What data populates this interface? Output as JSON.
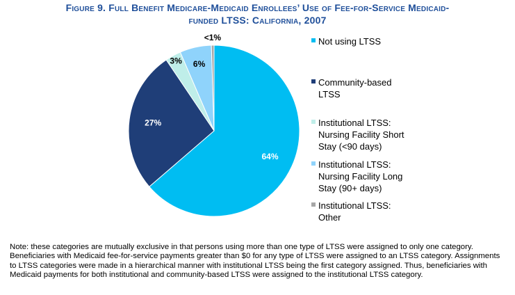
{
  "title": {
    "line1": "Figure 9. Full Benefit Medicare-Medicaid Enrollees’ Use of Fee-for-Service Medicaid-",
    "line2": "funded LTSS:  California, 2007"
  },
  "chart_data": {
    "type": "pie",
    "title": "Figure 9. Full Benefit Medicare-Medicaid Enrollees’ Use of Fee-for-Service Medicaid-funded LTSS: California, 2007",
    "labels": [
      "Not using LTSS",
      "Community-based LTSS",
      "Institutional LTSS: Nursing Facility Short Stay (<90 days)",
      "Institutional LTSS: Nursing Facility Long Stay (90+ days)",
      "Institutional LTSS: Other"
    ],
    "values": [
      64,
      27,
      3,
      6,
      0.5
    ],
    "data_labels": [
      "64%",
      "27%",
      "3%",
      "6%",
      "<1%"
    ],
    "colors": [
      "#00bdf2",
      "#1f3e78",
      "#bfeee9",
      "#8fd3fb",
      "#a6a6a6"
    ],
    "legend_position": "right"
  },
  "legend": [
    {
      "label": "Not using LTSS",
      "color": "#00bdf2"
    },
    {
      "label": "Community-based LTSS",
      "color": "#1f3e78"
    },
    {
      "label": "Institutional LTSS: Nursing Facility Short Stay (<90 days)",
      "color": "#bfeee9"
    },
    {
      "label": "Institutional LTSS: Nursing Facility Long Stay (90+ days)",
      "color": "#8fd3fb"
    },
    {
      "label": "Institutional LTSS: Other",
      "color": "#a6a6a6"
    }
  ],
  "note": "Note: these categories are mutually exclusive in that persons using more than one type of LTSS were assigned to only one category. Beneficiaries with Medicaid fee-for-service payments greater than $0 for any type of LTSS were assigned to an LTSS category. Assignments to LTSS categories were made in a hierarchical manner with institutional LTSS being the first category assigned. Thus, beneficiaries with Medicaid payments for both institutional and community-based LTSS were assigned to the institutional LTSS category."
}
